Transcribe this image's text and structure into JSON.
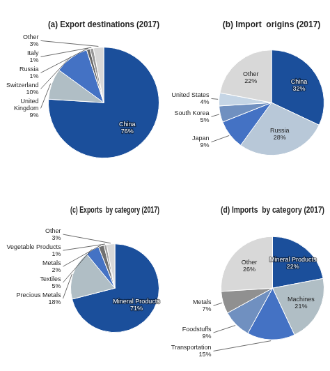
{
  "chart_data": [
    {
      "type": "pie",
      "title": "(a) Export destinations (2017)",
      "categories": [
        "China",
        "United\nKingdom",
        "Switzerland",
        "Russia",
        "Italy",
        "Other"
      ],
      "values": [
        76,
        9,
        10,
        1,
        1,
        3
      ],
      "value_labels": [
        "76%",
        "9%",
        "10%",
        "1%",
        "1%",
        "3%"
      ],
      "colors": [
        "#1b4f9b",
        "#b0bec5",
        "#4472c4",
        "#666666",
        "#999999",
        "#d8d8d8"
      ],
      "data_labels": true
    },
    {
      "type": "pie",
      "title": "(b) Import  origins (2017)",
      "categories": [
        "China",
        "Russia",
        "Japan",
        "South Korea",
        "United States",
        "Other"
      ],
      "values": [
        32,
        28,
        9,
        5,
        4,
        22
      ],
      "value_labels": [
        "32%",
        "28%",
        "9%",
        "5%",
        "4%",
        "22%"
      ],
      "colors": [
        "#1b4f9b",
        "#b8c8d8",
        "#4472c4",
        "#7090c0",
        "#c5d5e5",
        "#d8d8d8"
      ],
      "data_labels": true
    },
    {
      "type": "pie",
      "title": "(c) Exports  by category (2017)",
      "categories": [
        "Mineral Products",
        "Precious Metals",
        "Textiles",
        "Metals",
        "Vegetable Products",
        "Other"
      ],
      "values": [
        71,
        18,
        5,
        2,
        1,
        3
      ],
      "value_labels": [
        "71%",
        "18%",
        "5%",
        "2%",
        "1%",
        "3%"
      ],
      "colors": [
        "#1b4f9b",
        "#b0bec5",
        "#4472c4",
        "#707070",
        "#a0a0a0",
        "#d8d8d8"
      ],
      "data_labels": true
    },
    {
      "type": "pie",
      "title": "(d) Imports  by category (2017)",
      "categories": [
        "Mineral Products",
        "Machines",
        "Transportation",
        "Foodstuffs",
        "Metals",
        "Other"
      ],
      "values": [
        22,
        21,
        15,
        9,
        7,
        26
      ],
      "value_labels": [
        "22%",
        "21%",
        "15%",
        "9%",
        "7%",
        "26%"
      ],
      "colors": [
        "#1b4f9b",
        "#b0bec5",
        "#4472c4",
        "#7090c0",
        "#909090",
        "#d8d8d8"
      ],
      "data_labels": true
    }
  ]
}
